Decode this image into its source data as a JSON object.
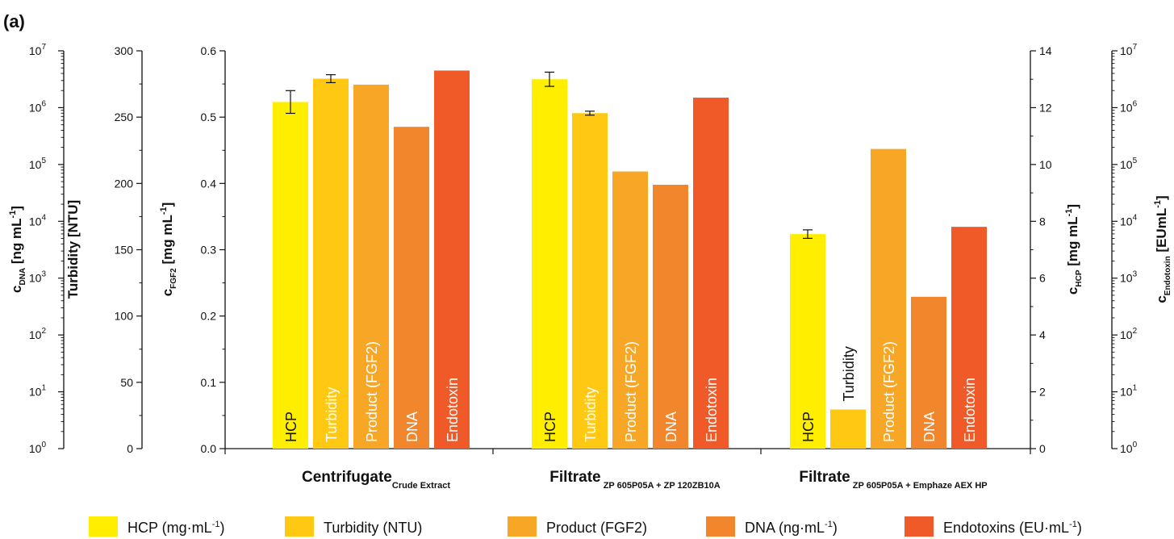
{
  "panel_label": "(a)",
  "chart_data": {
    "type": "bar",
    "groups": [
      {
        "label": "Centrifugate",
        "sublabel": "Crude Extract"
      },
      {
        "label": "Filtrate",
        "sublabel": "ZP 605P05A + ZP 120ZB10A"
      },
      {
        "label": "Filtrate",
        "sublabel": "ZP 605P05A + Emphaze AEX HP"
      }
    ],
    "series": [
      {
        "name": "HCP",
        "legend": "HCP (mg·mL-1)",
        "legend_main": "HCP (mg·mL",
        "legend_sup": "-1",
        "legend_tail": ")",
        "color": "#FFEE00",
        "axis": "hcp",
        "values": [
          12.2,
          13.0,
          7.55
        ],
        "errors": [
          0.4,
          0.25,
          0.15
        ]
      },
      {
        "name": "Turbidity",
        "legend": "Turbidity (NTU)",
        "legend_main": "Turbidity (NTU)",
        "legend_sup": "",
        "legend_tail": "",
        "color": "#FFC813",
        "axis": "turbidity",
        "values": [
          279,
          253,
          29.5
        ],
        "errors": [
          3,
          1.5,
          null
        ]
      },
      {
        "name": "Product (FGF2)",
        "legend": "Product (FGF2)",
        "legend_main": "Product (FGF2)",
        "legend_sup": "",
        "legend_tail": "",
        "color": "#F8A625",
        "axis": "fgf2",
        "values": [
          0.549,
          0.418,
          0.452
        ],
        "errors": [
          null,
          null,
          null
        ]
      },
      {
        "name": "DNA",
        "legend": "DNA (ng·mL-1)",
        "legend_main": "DNA (ng·mL",
        "legend_sup": "-1",
        "legend_tail": ")",
        "color": "#F2862D",
        "axis": "dna",
        "values": [
          460000,
          44000,
          470
        ],
        "errors": [
          null,
          null,
          null
        ]
      },
      {
        "name": "Endotoxin",
        "legend": "Endotoxins (EU·mL-1)",
        "legend_main": "Endotoxins (EU·mL",
        "legend_sup": "-1",
        "legend_tail": ")",
        "color": "#F05A28",
        "axis": "endotoxin",
        "values": [
          4500000,
          1500000,
          8000
        ],
        "errors": [
          null,
          null,
          null
        ]
      }
    ],
    "bar_labels": [
      "HCP",
      "Turbidity",
      "Product (FGF2)",
      "DNA",
      "Endotoxin"
    ],
    "axes": {
      "dna": {
        "label_main": "c",
        "label_sub": "DNA",
        "label_rest": " [ng mL",
        "label_sup": "-1",
        "label_end": "]",
        "scale": "log",
        "range": [
          1,
          10000000
        ],
        "ticks": [
          0,
          1,
          2,
          3,
          4,
          5,
          6,
          7
        ],
        "tick_base": "10"
      },
      "turbidity": {
        "label": "Turbidity [NTU]",
        "scale": "linear",
        "range": [
          0,
          300
        ],
        "ticks": [
          "0",
          "50",
          "100",
          "150",
          "200",
          "250",
          "300"
        ]
      },
      "fgf2": {
        "label_main": "c",
        "label_sub": "FGF2",
        "label_rest": " [mg mL",
        "label_sup": "-1",
        "label_end": "]",
        "scale": "linear",
        "range": [
          0,
          0.6
        ],
        "ticks": [
          "0.0",
          "0.1",
          "0.2",
          "0.3",
          "0.4",
          "0.5",
          "0.6"
        ]
      },
      "hcp": {
        "label_main": "c",
        "label_sub": "HCP",
        "label_rest": " [mg mL",
        "label_sup": "-1",
        "label_end": "]",
        "scale": "linear",
        "range": [
          0,
          14
        ],
        "ticks": [
          "0",
          "2",
          "4",
          "6",
          "8",
          "10",
          "12",
          "14"
        ]
      },
      "endotoxin": {
        "label_main": "c",
        "label_sub": "Endotoxin",
        "label_rest": " [EUmL",
        "label_sup": "-1",
        "label_end": "]",
        "scale": "log",
        "range": [
          1,
          10000000
        ],
        "ticks": [
          0,
          1,
          2,
          3,
          4,
          5,
          6,
          7
        ],
        "tick_base": "10"
      }
    },
    "legend_position": "bottom",
    "grid": false
  }
}
